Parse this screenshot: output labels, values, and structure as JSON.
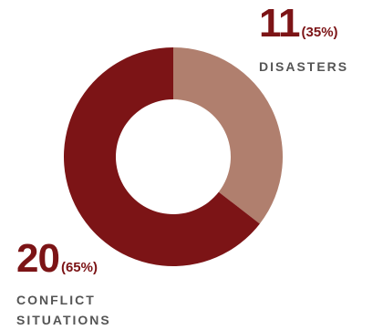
{
  "chart_data": {
    "type": "pie",
    "style": "donut",
    "slices": [
      {
        "label": "DISASTERS",
        "value": 11,
        "percent": "(35%)",
        "color": "#b07f6e"
      },
      {
        "label": "CONFLICT SITUATIONS",
        "value": 20,
        "percent": "(65%)",
        "color": "#7c1416"
      }
    ],
    "start_angle_deg": 0,
    "direction": "clockwise"
  },
  "labels": {
    "disasters": {
      "number": "11",
      "percent": "(35%)",
      "name": "DISASTERS"
    },
    "conflict": {
      "number": "20",
      "percent": "(65%)",
      "name_line1": "CONFLICT",
      "name_line2": "SITUATIONS"
    }
  }
}
